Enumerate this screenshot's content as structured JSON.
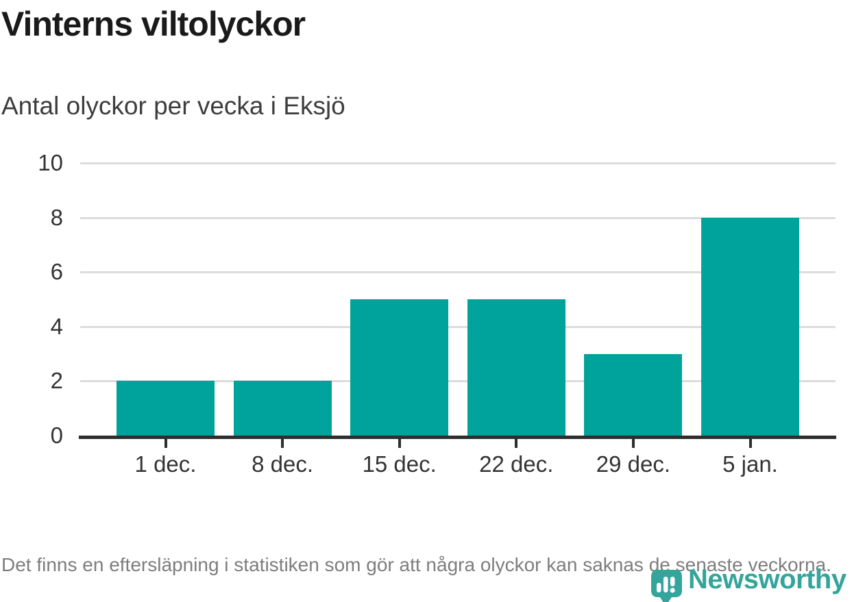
{
  "header": {
    "title": "Vinterns viltolyckor",
    "subtitle": "Antal olyckor per vecka i Eksjö"
  },
  "chart_data": {
    "type": "bar",
    "title": "Vinterns viltolyckor",
    "subtitle": "Antal olyckor per vecka i Eksjö",
    "categories": [
      "1 dec.",
      "8 dec.",
      "15 dec.",
      "22 dec.",
      "29 dec.",
      "5 jan."
    ],
    "values": [
      2,
      2,
      5,
      5,
      3,
      8
    ],
    "xlabel": "",
    "ylabel": "",
    "ylim": [
      0,
      10
    ],
    "yticks": [
      0,
      2,
      4,
      6,
      8,
      10
    ],
    "grid": true,
    "legend": "none",
    "bar_color": "#00a39b",
    "gridline_color": "#dcdcdc",
    "axis_color": "#2e2e2e",
    "tick_label_color": "#333333"
  },
  "footer": {
    "note": "Det finns en eftersläpning i statistiken som gör att några olyckor kan saknas de senaste veckorna."
  },
  "logo": {
    "wordmark": "Newsworthy",
    "color": "#33a59b"
  }
}
